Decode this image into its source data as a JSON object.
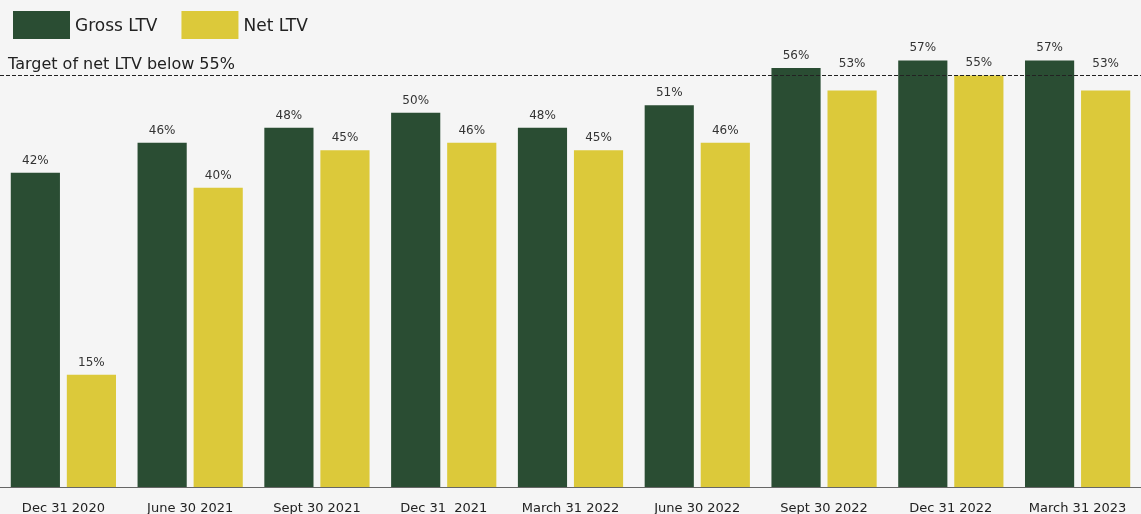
{
  "chart_data": {
    "type": "bar",
    "categories": [
      "Dec 31 2020",
      "June 30 2021",
      "Sept 30 2021",
      "Dec 31  2021",
      "March 31 2022",
      "June 30 2022",
      "Sept 30 2022",
      "Dec 31 2022",
      "March 31 2023"
    ],
    "series": [
      {
        "name": "Gross LTV",
        "color": "#2a4d33",
        "values": [
          42,
          46,
          48,
          50,
          48,
          51,
          56,
          57,
          57
        ],
        "value_labels": [
          "42%",
          "46%",
          "48%",
          "50%",
          "48%",
          "51%",
          "56%",
          "57%",
          "57%"
        ]
      },
      {
        "name": "Net LTV",
        "color": "#dcc93a",
        "values": [
          15,
          40,
          45,
          46,
          45,
          46,
          53,
          55,
          53
        ],
        "value_labels": [
          "15%",
          "40%",
          "45%",
          "46%",
          "45%",
          "46%",
          "53%",
          "55%",
          "53%"
        ]
      }
    ],
    "ref_lines": [
      {
        "axis": "y",
        "value": 55,
        "label": "Target of net LTV below 55%",
        "color": "#222222",
        "line_style": "dashed"
      }
    ],
    "legend": "top left",
    "grid": false
  }
}
